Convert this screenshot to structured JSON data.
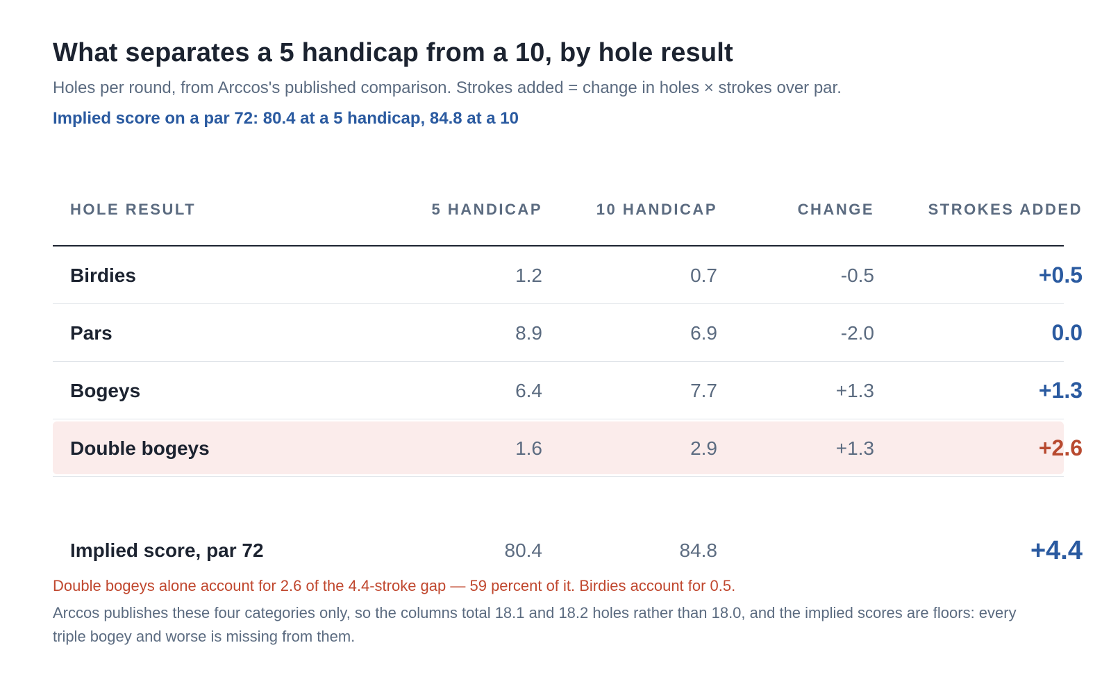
{
  "title": "What separates a 5 handicap from a 10, by hole result",
  "subtitle": "Holes per round, from Arccos's published comparison. Strokes added = change in holes × strokes over par.",
  "implied_line": "Implied score on a par 72: 80.4 at a 5 handicap, 84.8 at a 10",
  "table": {
    "headers": {
      "label": "HOLE RESULT",
      "h5": "5 HANDICAP",
      "h10": "10 HANDICAP",
      "change": "CHANGE",
      "strokes_added": "STROKES ADDED"
    },
    "rows": [
      {
        "label": "Birdies",
        "h5": "1.2",
        "h10": "0.7",
        "change": "-0.5",
        "strokes_added": "+0.5"
      },
      {
        "label": "Pars",
        "h5": "8.9",
        "h10": "6.9",
        "change": "-2.0",
        "strokes_added": "0.0"
      },
      {
        "label": "Bogeys",
        "h5": "6.4",
        "h10": "7.7",
        "change": "+1.3",
        "strokes_added": "+1.3"
      },
      {
        "label": "Double bogeys",
        "h5": "1.6",
        "h10": "2.9",
        "change": "+1.3",
        "strokes_added": "+2.6"
      }
    ],
    "total": {
      "label": "Implied score, par 72",
      "h5": "80.4",
      "h10": "84.8",
      "strokes_added": "+4.4"
    }
  },
  "note_highlight": "Double bogeys alone account for 2.6 of the 4.4-stroke gap — 59 percent of it. Birdies account for 0.5.",
  "note_footer": "Arccos publishes these four categories only, so the columns total 18.1 and 18.2 holes rather than 18.0, and the implied scores are floors: every triple bogey and worse is missing from them.",
  "colors": {
    "accent_blue": "#2a5aa0",
    "highlight_red": "#b84a30",
    "highlight_bg": "#fbeceb"
  }
}
